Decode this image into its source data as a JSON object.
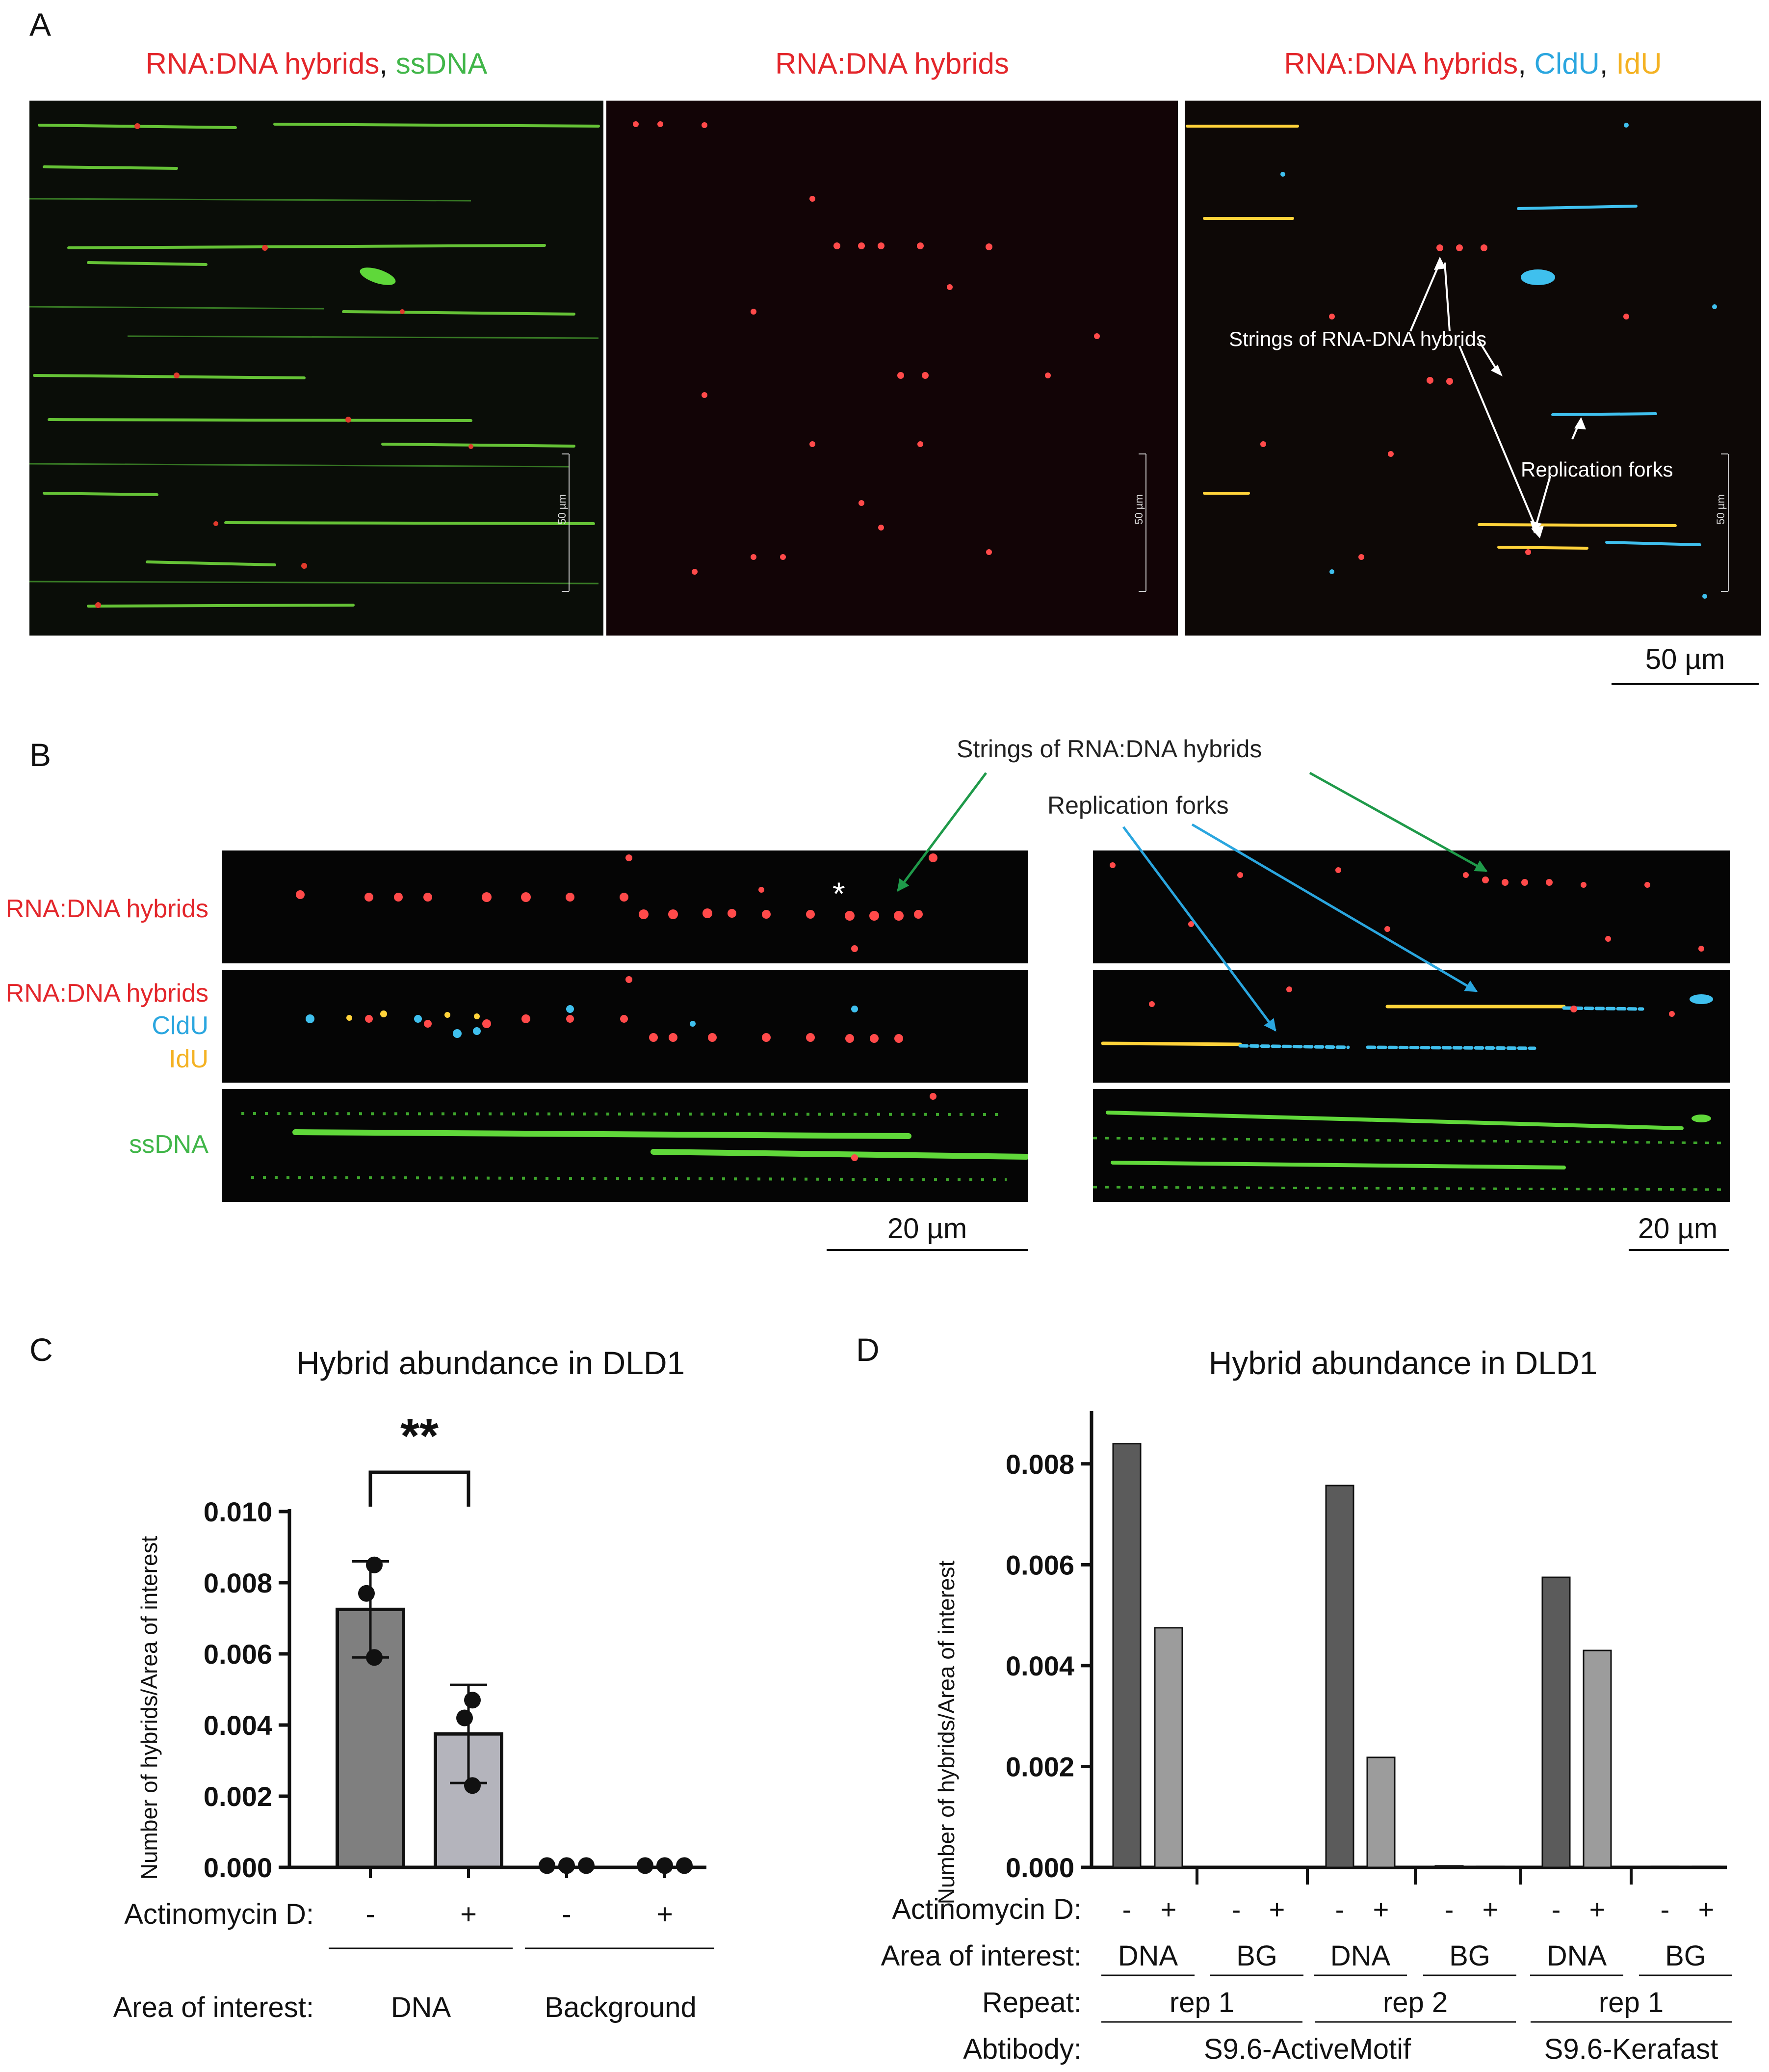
{
  "panel_a": {
    "letter": "A",
    "titles": [
      {
        "parts": [
          {
            "text": "RNA:DNA hybrids",
            "color": "red"
          },
          {
            "text": ", ",
            "color": "black"
          },
          {
            "text": "ssDNA",
            "color": "green"
          }
        ]
      },
      {
        "parts": [
          {
            "text": "RNA:DNA hybrids",
            "color": "red"
          }
        ]
      },
      {
        "parts": [
          {
            "text": "RNA:DNA hybrids",
            "color": "red"
          },
          {
            "text": ", ",
            "color": "black"
          },
          {
            "text": "CldU",
            "color": "blue"
          },
          {
            "text": ", ",
            "color": "black"
          },
          {
            "text": "IdU",
            "color": "yellow"
          }
        ]
      }
    ],
    "inset_scale": "50 µm",
    "annotation_hybrids": "Strings of RNA-DNA hybrids",
    "annotation_forks": "Replication forks",
    "scalebar": "50 µm"
  },
  "panel_b": {
    "letter": "B",
    "row_labels": {
      "row1": "RNA:DNA hybrids",
      "row2_line1": "RNA:DNA hybrids",
      "row2_line2": "CldU",
      "row2_line3": "IdU",
      "row3": "ssDNA"
    },
    "annotation_hybrids": "Strings of RNA:DNA hybrids",
    "annotation_forks": "Replication forks",
    "asterisk": "*",
    "scalebar_left": "20 µm",
    "scalebar_right": "20 µm"
  },
  "panel_c": {
    "letter": "C",
    "significance": "**",
    "row1_label": "Actinomycin D:",
    "row2_label": "Area of interest:",
    "actinomycin": [
      "-",
      "+",
      "-",
      "+"
    ],
    "areas": [
      "DNA",
      "Background"
    ]
  },
  "panel_d": {
    "letter": "D",
    "row1_label": "Actinomycin D:",
    "row2_label": "Area of interest:",
    "row3_label": "Repeat:",
    "row4_label": "Abtibody:",
    "actinomycin": [
      "-",
      "+",
      "-",
      "+",
      "-",
      "+",
      "-",
      "+",
      "-",
      "+",
      "-",
      "+"
    ],
    "areas": [
      "DNA",
      "BG",
      "DNA",
      "BG",
      "DNA",
      "BG"
    ],
    "repeats": [
      "rep 1",
      "rep 2",
      "rep 1"
    ],
    "antibodies": [
      "S9.6-ActiveMotif",
      "S9.6-Kerafast"
    ]
  },
  "chart_data": [
    {
      "type": "bar",
      "title": "Hybrid abundance in DLD1",
      "ylabel": "Number of hybrids/Area of interest",
      "ylim": [
        0,
        0.01
      ],
      "yticks": [
        "0.000",
        "0.002",
        "0.004",
        "0.006",
        "0.008",
        "0.010"
      ],
      "categories": [
        "-",
        "+",
        "-",
        "+"
      ],
      "values": [
        0.00725,
        0.00375,
        5e-05,
        5e-05
      ],
      "error": [
        0.00135,
        0.00138,
        0,
        0
      ],
      "points": [
        [
          0.0085,
          0.0077,
          0.0059
        ],
        [
          0.0047,
          0.0042,
          0.0023
        ],
        [
          5e-05,
          5e-05,
          5e-05
        ],
        [
          5e-05,
          5e-05,
          5e-05
        ]
      ],
      "bar_colors": [
        "#7f7f7f",
        "#b4b4bc",
        "#7f7f7f",
        "#b4b4bc"
      ]
    },
    {
      "type": "bar",
      "title": "Hybrid abundance in DLD1",
      "ylabel": "Number of hybrids/Area of interest",
      "ylim": [
        0,
        0.009
      ],
      "yticks": [
        "0.000",
        "0.002",
        "0.004",
        "0.006",
        "0.008"
      ],
      "categories": [
        "-",
        "+",
        "-",
        "+",
        "-",
        "+",
        "-",
        "+",
        "-",
        "+",
        "-",
        "+"
      ],
      "values": [
        0.0084,
        0.00475,
        0,
        0,
        0.00757,
        0.00218,
        3e-05,
        2e-05,
        0.00575,
        0.0043,
        2e-05,
        2e-05
      ],
      "bar_colors": [
        "#5b5b5b",
        "#9c9c9c",
        "#5b5b5b",
        "#9c9c9c",
        "#5b5b5b",
        "#9c9c9c",
        "#5b5b5b",
        "#9c9c9c",
        "#5b5b5b",
        "#9c9c9c",
        "#5b5b5b",
        "#9c9c9c"
      ]
    }
  ]
}
